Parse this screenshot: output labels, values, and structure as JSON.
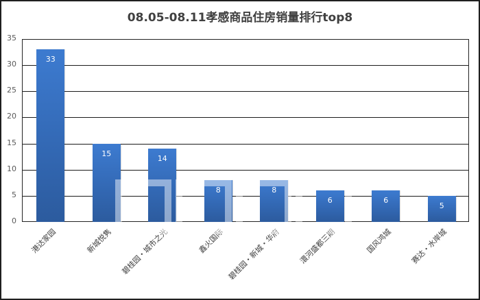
{
  "chart_data": {
    "type": "bar",
    "title": "08.05-08.11孝感商品住房销量排行top8",
    "categories": [
      "港达家园",
      "新城悦隽",
      "碧桂园・城市之光",
      "鑫火国际",
      "碧桂园・新城・华府",
      "澴河盛都三期",
      "国风鸿城",
      "赛达・水岸城"
    ],
    "values": [
      33,
      15,
      14,
      8,
      8,
      6,
      6,
      5
    ],
    "xlabel": "",
    "ylabel": "",
    "ylim": [
      0,
      35
    ],
    "yticks": [
      0,
      5,
      10,
      15,
      20,
      25,
      30,
      35
    ],
    "grid": true,
    "legend": "none",
    "data_labels": true,
    "bar_color": "#3369b5",
    "label_color": "#ffffff"
  },
  "ui": {
    "yticks_text": [
      "35",
      "30",
      "25",
      "20",
      "15",
      "10",
      "5",
      "0"
    ]
  }
}
